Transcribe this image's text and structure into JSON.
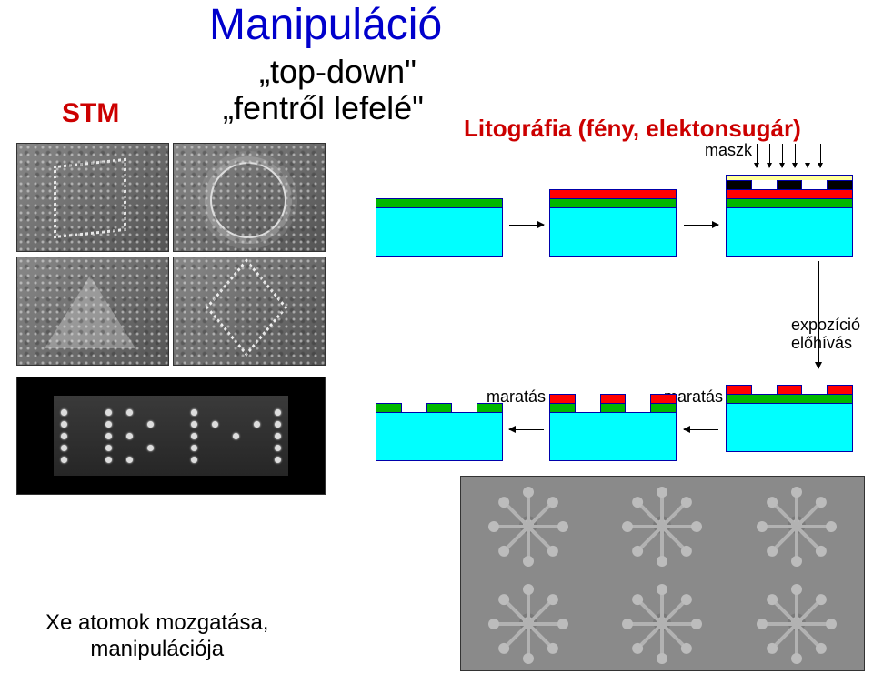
{
  "title": "Manipuláció",
  "subtitle1": "„top-down\"",
  "subtitle2": "„fentről lefelé\"",
  "stm_label": "STM",
  "lithography_label": "Litográfia (fény, elektonsugár)",
  "mask_label": "maszk",
  "exposure_label_line1": "expozíció",
  "exposure_label_line2": "előhívás",
  "etch_label": "maratás",
  "caption_line1": "Xe atomok mozgatása,",
  "caption_line2": "manipulációja",
  "colors": {
    "title_color": "#0000cc",
    "heading_red": "#cc0000",
    "substrate": "#00ffff",
    "layer_green": "#00b800",
    "layer_red": "#ff0000",
    "mask_black": "#000000",
    "mask_yellow": "#ffff99",
    "border": "#0000aa",
    "panel_gray": "#8a8a8a"
  },
  "lithography_steps": {
    "row1": [
      {
        "layers": [
          "substrate",
          "green"
        ]
      },
      {
        "layers": [
          "substrate",
          "green",
          "red"
        ]
      },
      {
        "layers": [
          "substrate",
          "green",
          "red",
          "mask_pattern",
          "yellow"
        ]
      }
    ],
    "row2": [
      {
        "type": "etched_green",
        "label_after": "maratás"
      },
      {
        "type": "etched_green_red",
        "label_after": "maratás"
      },
      {
        "type": "patterned_red_on_green"
      }
    ],
    "arrows": [
      "step1→step2",
      "step2→step3",
      "step3→(expozíció/előhívás)→rowB3",
      "rowB3→rowB2 (maratás)",
      "rowB2→rowB1 (maratás)"
    ]
  },
  "stm_panels": [
    "square-corral",
    "ring-corral",
    "triangle-corral",
    "diamond-corral"
  ],
  "flake_grid": {
    "rows": 2,
    "cols": 3,
    "arms_per_flake": 8
  }
}
